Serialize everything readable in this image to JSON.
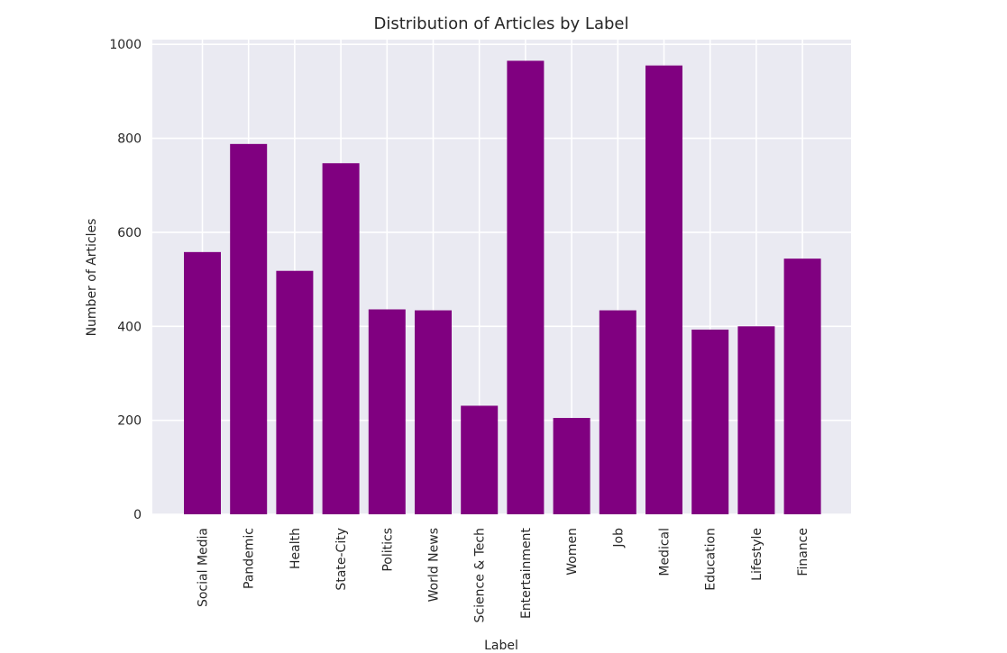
{
  "chart_data": {
    "type": "bar",
    "title": "Distribution of Articles by Label",
    "xlabel": "Label",
    "ylabel": "Number of Articles",
    "categories": [
      "Social Media",
      "Pandemic",
      "Health",
      "State-City",
      "Politics",
      "World News",
      "Science & Tech",
      "Entertainment",
      "Women",
      "Job",
      "Medical",
      "Education",
      "Lifestyle",
      "Finance"
    ],
    "values": [
      558,
      788,
      518,
      747,
      436,
      434,
      231,
      965,
      205,
      434,
      955,
      393,
      400,
      544
    ],
    "ylim": [
      0,
      1010
    ],
    "yticks": [
      0,
      200,
      400,
      600,
      800,
      1000
    ],
    "bar_color": "#800080",
    "plot_background": "#EAEAF2",
    "grid_color": "#FFFFFF",
    "grid": true
  }
}
